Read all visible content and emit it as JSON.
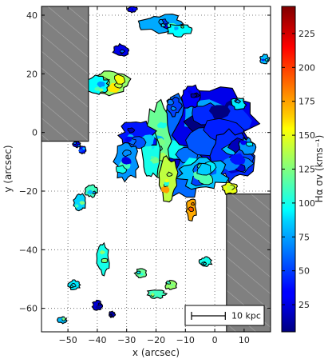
{
  "chart_data": {
    "type": "heatmap",
    "xlabel": "x (arcsec)",
    "ylabel": "y (arcsec)",
    "xlim": [
      -59,
      19
    ],
    "ylim": [
      -68,
      43
    ],
    "xticks": [
      -50,
      -40,
      -30,
      -20,
      -10,
      0,
      10
    ],
    "yticks": [
      -60,
      -40,
      -20,
      0,
      20,
      40
    ],
    "grid": true,
    "colorbar": {
      "label": "Hα σv (kms⁻¹)",
      "range": [
        5,
        245
      ],
      "ticks": [
        25,
        50,
        75,
        100,
        125,
        150,
        175,
        200,
        225
      ],
      "colormap": "jet"
    },
    "masked_regions": [
      {
        "x": [
          -59,
          -43
        ],
        "y": [
          -3,
          43
        ]
      },
      {
        "x": [
          4,
          19
        ],
        "y": [
          -68,
          -21
        ]
      }
    ],
    "scale_bar": {
      "label": "10 kpc",
      "length_arcsec": 11.5
    },
    "emission_blobs": [
      {
        "x": -11,
        "y": -5,
        "rx": 9,
        "ry": 17,
        "v": 60
      },
      {
        "x": 0,
        "y": 3,
        "rx": 13,
        "ry": 12,
        "v": 30
      },
      {
        "x": 6,
        "y": -8,
        "rx": 7,
        "ry": 8,
        "v": 45
      },
      {
        "x": -4,
        "y": -14,
        "rx": 8,
        "ry": 5,
        "v": 80
      },
      {
        "x": -19,
        "y": -3,
        "rx": 4,
        "ry": 12,
        "v": 120
      },
      {
        "x": -16,
        "y": -16,
        "rx": 3,
        "ry": 7,
        "v": 140
      },
      {
        "x": -22,
        "y": -8,
        "rx": 3,
        "ry": 8,
        "v": 100
      },
      {
        "x": -26,
        "y": -1,
        "rx": 6,
        "ry": 5,
        "v": 40
      },
      {
        "x": -30,
        "y": -10,
        "rx": 4,
        "ry": 6,
        "v": 70
      },
      {
        "x": -35,
        "y": 17,
        "rx": 6,
        "ry": 4,
        "v": 130
      },
      {
        "x": -40,
        "y": 16,
        "rx": 4,
        "ry": 3,
        "v": 95
      },
      {
        "x": -18,
        "y": 37,
        "rx": 7,
        "ry": 3,
        "v": 75
      },
      {
        "x": -12,
        "y": 35,
        "rx": 4,
        "ry": 2,
        "v": 95
      },
      {
        "x": -32,
        "y": 28,
        "rx": 2.5,
        "ry": 2,
        "v": 30
      },
      {
        "x": -8,
        "y": -26,
        "rx": 1.8,
        "ry": 3.5,
        "v": 175
      },
      {
        "x": 5,
        "y": -19,
        "rx": 2.5,
        "ry": 2,
        "v": 150
      },
      {
        "x": -38,
        "y": -43,
        "rx": 2,
        "ry": 5,
        "v": 100
      },
      {
        "x": -40,
        "y": -59,
        "rx": 1.6,
        "ry": 1.5,
        "v": 25
      },
      {
        "x": -47,
        "y": -4,
        "rx": 1.2,
        "ry": 1,
        "v": 30
      },
      {
        "x": -45,
        "y": -6,
        "rx": 1.2,
        "ry": 1.2,
        "v": 40
      },
      {
        "x": -46,
        "y": -24,
        "rx": 2,
        "ry": 3,
        "v": 85
      },
      {
        "x": -42,
        "y": -20,
        "rx": 2,
        "ry": 2,
        "v": 110
      },
      {
        "x": -28,
        "y": 42,
        "rx": 1.5,
        "ry": 1,
        "v": 30
      },
      {
        "x": 8,
        "y": 10,
        "rx": 2.5,
        "ry": 2,
        "v": 90
      },
      {
        "x": 11,
        "y": -5,
        "rx": 2.5,
        "ry": 3,
        "v": 70
      },
      {
        "x": 17,
        "y": 25,
        "rx": 1.5,
        "ry": 1.5,
        "v": 80
      },
      {
        "x": -20,
        "y": -55,
        "rx": 3,
        "ry": 1.5,
        "v": 110
      },
      {
        "x": -25,
        "y": -48,
        "rx": 2,
        "ry": 1.5,
        "v": 120
      },
      {
        "x": -15,
        "y": -52,
        "rx": 2,
        "ry": 1.5,
        "v": 130
      },
      {
        "x": -48,
        "y": -52,
        "rx": 2,
        "ry": 1.5,
        "v": 90
      },
      {
        "x": -3,
        "y": -44,
        "rx": 2,
        "ry": 1.5,
        "v": 100
      },
      {
        "x": -52,
        "y": -64,
        "rx": 1.5,
        "ry": 1,
        "v": 80
      },
      {
        "x": -35,
        "y": -62,
        "rx": 1,
        "ry": 1,
        "v": 20
      },
      {
        "x": -8,
        "y": 12,
        "rx": 3,
        "ry": 4,
        "v": 35
      },
      {
        "x": -14,
        "y": 9,
        "rx": 2.5,
        "ry": 3,
        "v": 50
      }
    ]
  }
}
